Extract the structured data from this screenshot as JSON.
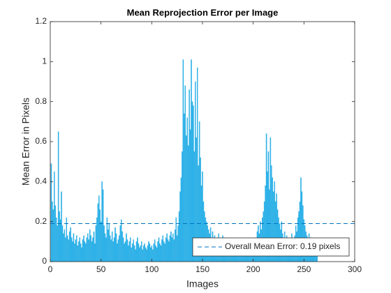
{
  "chart_data": {
    "type": "bar",
    "title": "Mean Reprojection Error per Image",
    "x_label": "Images",
    "y_label": "Mean Error in Pixels",
    "color": "#2bb6f0",
    "x": [
      1,
      2,
      3,
      4,
      5,
      6,
      7,
      8,
      9,
      10,
      11,
      12,
      13,
      14,
      15,
      16,
      17,
      18,
      19,
      20,
      21,
      22,
      23,
      24,
      25,
      26,
      27,
      28,
      29,
      30,
      31,
      32,
      33,
      34,
      35,
      36,
      37,
      38,
      39,
      40,
      41,
      42,
      43,
      44,
      45,
      46,
      47,
      48,
      49,
      50,
      51,
      52,
      53,
      54,
      55,
      56,
      57,
      58,
      59,
      60,
      61,
      62,
      63,
      64,
      65,
      66,
      67,
      68,
      69,
      70,
      71,
      72,
      73,
      74,
      75,
      76,
      77,
      78,
      79,
      80,
      81,
      82,
      83,
      84,
      85,
      86,
      87,
      88,
      89,
      90,
      91,
      92,
      93,
      94,
      95,
      96,
      97,
      98,
      99,
      100,
      101,
      102,
      103,
      104,
      105,
      106,
      107,
      108,
      109,
      110,
      111,
      112,
      113,
      114,
      115,
      116,
      117,
      118,
      119,
      120,
      121,
      122,
      123,
      124,
      125,
      126,
      127,
      128,
      129,
      130,
      131,
      132,
      133,
      134,
      135,
      136,
      137,
      138,
      139,
      140,
      141,
      142,
      143,
      144,
      145,
      146,
      147,
      148,
      149,
      150,
      151,
      152,
      153,
      154,
      155,
      156,
      157,
      158,
      159,
      160,
      161,
      162,
      163,
      164,
      165,
      166,
      167,
      168,
      169,
      170,
      171,
      172,
      173,
      174,
      175,
      176,
      177,
      178,
      179,
      180,
      181,
      182,
      183,
      184,
      185,
      186,
      187,
      188,
      189,
      190,
      191,
      192,
      193,
      194,
      195,
      196,
      197,
      198,
      199,
      200,
      201,
      202,
      203,
      204,
      205,
      206,
      207,
      208,
      209,
      210,
      211,
      212,
      213,
      214,
      215,
      216,
      217,
      218,
      219,
      220,
      221,
      222,
      223,
      224,
      225,
      226,
      227,
      228,
      229,
      230,
      231,
      232,
      233,
      234,
      235,
      236,
      237,
      238,
      239,
      240,
      241,
      242,
      243,
      244,
      245,
      246,
      247,
      248,
      249,
      250,
      251,
      252,
      253,
      254,
      255,
      256,
      257,
      258,
      259,
      260,
      261,
      262,
      263
    ],
    "values": [
      0.49,
      0.3,
      0.26,
      0.45,
      0.28,
      0.22,
      0.18,
      0.65,
      0.25,
      0.21,
      0.35,
      0.18,
      0.14,
      0.16,
      0.12,
      0.22,
      0.13,
      0.11,
      0.15,
      0.17,
      0.12,
      0.1,
      0.14,
      0.09,
      0.11,
      0.13,
      0.08,
      0.1,
      0.12,
      0.09,
      0.07,
      0.11,
      0.13,
      0.1,
      0.09,
      0.12,
      0.14,
      0.11,
      0.16,
      0.13,
      0.1,
      0.12,
      0.15,
      0.09,
      0.18,
      0.22,
      0.29,
      0.33,
      0.26,
      0.2,
      0.4,
      0.36,
      0.18,
      0.14,
      0.12,
      0.22,
      0.16,
      0.19,
      0.13,
      0.11,
      0.15,
      0.1,
      0.12,
      0.17,
      0.14,
      0.09,
      0.11,
      0.13,
      0.18,
      0.21,
      0.15,
      0.12,
      0.09,
      0.1,
      0.14,
      0.11,
      0.08,
      0.1,
      0.12,
      0.07,
      0.09,
      0.11,
      0.08,
      0.06,
      0.1,
      0.12,
      0.09,
      0.07,
      0.08,
      0.1,
      0.06,
      0.08,
      0.09,
      0.07,
      0.06,
      0.08,
      0.1,
      0.09,
      0.07,
      0.08,
      0.06,
      0.09,
      0.11,
      0.08,
      0.07,
      0.1,
      0.12,
      0.09,
      0.08,
      0.11,
      0.13,
      0.1,
      0.09,
      0.12,
      0.14,
      0.11,
      0.1,
      0.13,
      0.15,
      0.12,
      0.14,
      0.11,
      0.16,
      0.22,
      0.13,
      0.18,
      0.25,
      0.35,
      0.42,
      0.55,
      1.01,
      0.74,
      0.88,
      0.63,
      0.72,
      0.58,
      0.86,
      0.66,
      1.01,
      0.8,
      0.78,
      0.55,
      0.9,
      0.62,
      0.97,
      0.48,
      0.7,
      0.52,
      0.38,
      0.45,
      0.3,
      0.25,
      0.22,
      0.2,
      0.18,
      0.16,
      0.14,
      0.17,
      0.12,
      0.15,
      0.11,
      0.13,
      0.1,
      0.12,
      0.09,
      0.14,
      0.11,
      0.08,
      0.1,
      0.13,
      0.09,
      0.12,
      0.1,
      0.07,
      0.09,
      0.11,
      0.08,
      0.1,
      0.12,
      0.09,
      0.07,
      0.09,
      0.11,
      0.08,
      0.06,
      0.09,
      0.1,
      0.07,
      0.08,
      0.06,
      0.09,
      0.11,
      0.08,
      0.07,
      0.1,
      0.12,
      0.09,
      0.08,
      0.06,
      0.09,
      0.08,
      0.1,
      0.12,
      0.15,
      0.18,
      0.14,
      0.2,
      0.16,
      0.22,
      0.25,
      0.3,
      0.38,
      0.64,
      0.45,
      0.55,
      0.36,
      0.62,
      0.48,
      0.42,
      0.35,
      0.4,
      0.3,
      0.34,
      0.26,
      0.22,
      0.19,
      0.16,
      0.2,
      0.14,
      0.12,
      0.15,
      0.11,
      0.13,
      0.1,
      0.12,
      0.09,
      0.11,
      0.14,
      0.12,
      0.1,
      0.13,
      0.18,
      0.15,
      0.22,
      0.25,
      0.3,
      0.42,
      0.35,
      0.28,
      0.21,
      0.18,
      0.15,
      0.13,
      0.11,
      0.14,
      0.1,
      0.12,
      0.09,
      0.11,
      0.08,
      0.1,
      0.07,
      0.09
    ],
    "mean_line": {
      "value": 0.19,
      "label": "Overall Mean Error: 0.19 pixels",
      "color": "#0072bd"
    },
    "xlim": [
      0,
      300
    ],
    "xticks": [
      0,
      50,
      100,
      150,
      200,
      250,
      300
    ],
    "ylim": [
      0,
      1.2
    ],
    "yticks": [
      0,
      0.2,
      0.4,
      0.6,
      0.8,
      1,
      1.2
    ],
    "legend_position": "southeast"
  }
}
